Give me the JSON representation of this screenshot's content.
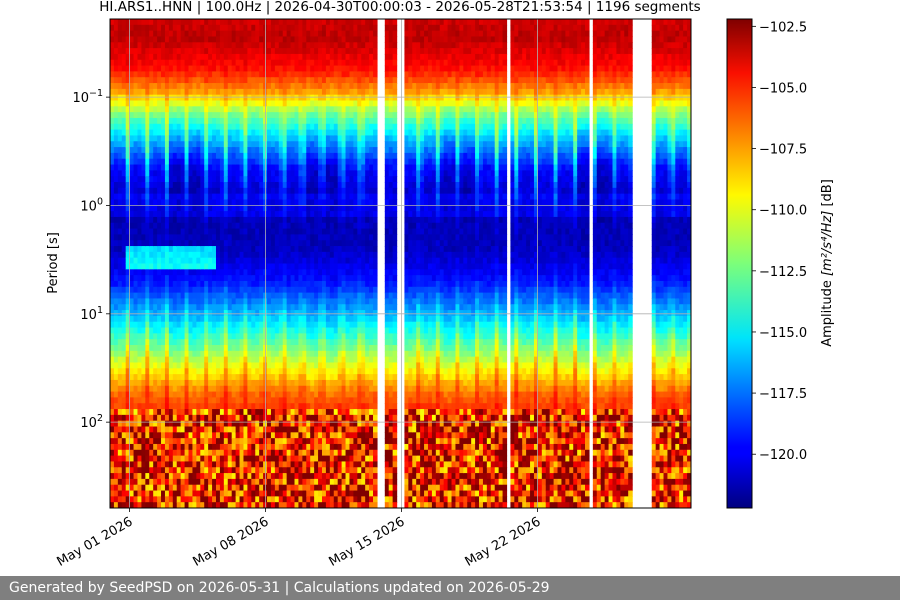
{
  "chart_data": {
    "type": "heatmap",
    "title": "HI.ARS1..HNN | 100.0Hz | 2026-04-30T00:00:03 - 2026-05-28T21:53:54 | 1196 segments",
    "ylabel": "Period [s]",
    "y_scale": "log",
    "y_range_s": [
      0.019,
      620
    ],
    "y_ticks": [
      {
        "value": 0.1,
        "base": "10",
        "exp": "−1"
      },
      {
        "value": 1,
        "base": "10",
        "exp": "0"
      },
      {
        "value": 10,
        "base": "10",
        "exp": "1"
      },
      {
        "value": 100,
        "base": "10",
        "exp": "2"
      }
    ],
    "x_range_days_from_may01": [
      -1.0,
      28.9
    ],
    "x_ticks": [
      {
        "label": "May 01 2026",
        "day": 0
      },
      {
        "label": "May 08 2026",
        "day": 7
      },
      {
        "label": "May 15 2026",
        "day": 14
      },
      {
        "label": "May 22 2026",
        "day": 21
      }
    ],
    "grid": true,
    "data_gaps_days_from_may01": [
      [
        12.25,
        12.4
      ],
      [
        12.7,
        13.2
      ],
      [
        13.7,
        14.2
      ],
      [
        19.5,
        19.7
      ],
      [
        23.6,
        23.9
      ],
      [
        25.9,
        26.9
      ]
    ],
    "colorbar": {
      "label": "Amplitude [m²/s⁴/Hz] [dB]",
      "label_parts": {
        "prefix": "Amplitude ",
        "unit": "[m²/s⁴/Hz]",
        "suffix": " [dB]"
      },
      "range_db": [
        -122.2,
        -102.2
      ],
      "ticks": [
        "−102.5",
        "−105.0",
        "−107.5",
        "−110.0",
        "−112.5",
        "−115.0",
        "−117.5",
        "−120.0"
      ],
      "colormap": "jet"
    }
  },
  "footer": {
    "text": "Generated by SeedPSD on 2026-05-31 | Calculations updated on 2026-05-29"
  }
}
